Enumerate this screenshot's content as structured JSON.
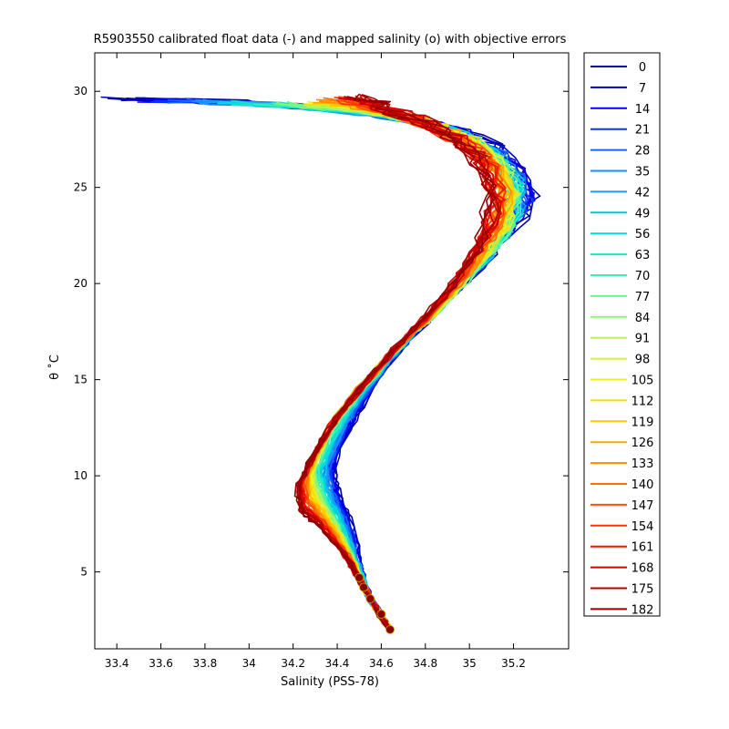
{
  "chart_data": {
    "type": "line",
    "title": "R5903550 calibrated float data (-) and mapped salinity (o) with objective errors",
    "xlabel": "Salinity (PSS-78)",
    "ylabel": "θ ˚C",
    "xlim": [
      33.3,
      35.45
    ],
    "ylim": [
      1.0,
      32.0
    ],
    "xticks": [
      "33.4",
      "33.6",
      "33.8",
      "34",
      "34.2",
      "34.4",
      "34.6",
      "34.8",
      "35",
      "35.2"
    ],
    "xtick_values": [
      33.4,
      33.6,
      33.8,
      34.0,
      34.2,
      34.4,
      34.6,
      34.8,
      35.0,
      35.2
    ],
    "yticks": [
      "5",
      "10",
      "15",
      "20",
      "25",
      "30"
    ],
    "ytick_values": [
      5,
      10,
      15,
      20,
      25,
      30
    ],
    "grid": false,
    "legend_position": "outside-right",
    "legend": [
      "0",
      "7",
      "14",
      "21",
      "28",
      "35",
      "42",
      "49",
      "56",
      "63",
      "70",
      "77",
      "84",
      "91",
      "98",
      "105",
      "112",
      "119",
      "126",
      "133",
      "140",
      "147",
      "154",
      "161",
      "168",
      "175",
      "182"
    ],
    "colors": [
      "#0000aa",
      "#0000c8",
      "#0000ff",
      "#0a32ff",
      "#1464ff",
      "#1e8cff",
      "#14a0f0",
      "#00c8e6",
      "#00dcdc",
      "#14e6c8",
      "#3cf0b4",
      "#64f596",
      "#8cf578",
      "#b4f55a",
      "#d2f03c",
      "#f0f01e",
      "#ffdc00",
      "#ffc800",
      "#ffaa00",
      "#ff8c00",
      "#ff6e00",
      "#ff5000",
      "#ff3200",
      "#f01400",
      "#d20000",
      "#b40000",
      "#960000"
    ],
    "series_representative": {
      "early": {
        "x": [
          34.64,
          34.6,
          34.55,
          34.52,
          34.5,
          34.48,
          34.45,
          34.42,
          34.4,
          34.38,
          34.42,
          34.48,
          34.55,
          34.62,
          34.7,
          34.8,
          34.9,
          35.0,
          35.12,
          35.22,
          35.28,
          35.22,
          35.1,
          34.9,
          34.6,
          34.2,
          33.8,
          33.4
        ],
        "y": [
          2.0,
          2.8,
          3.6,
          4.6,
          5.6,
          6.8,
          7.8,
          8.6,
          9.4,
          10.2,
          11.6,
          13.0,
          14.4,
          15.6,
          16.8,
          18.0,
          19.2,
          20.4,
          21.8,
          23.2,
          24.4,
          26.0,
          27.2,
          28.2,
          28.9,
          29.3,
          29.5,
          29.6
        ]
      },
      "middle": {
        "x": [
          34.64,
          34.58,
          34.52,
          34.48,
          34.42,
          34.36,
          34.3,
          34.28,
          34.34,
          34.42,
          34.52,
          34.62,
          34.72,
          34.84,
          34.95,
          35.05,
          35.15,
          35.2,
          35.15,
          35.02,
          34.8,
          34.55,
          34.25
        ],
        "y": [
          2.0,
          3.0,
          4.2,
          5.4,
          6.8,
          8.0,
          9.2,
          10.2,
          11.8,
          13.4,
          14.8,
          16.0,
          17.2,
          18.4,
          19.8,
          21.2,
          22.8,
          24.4,
          26.0,
          27.4,
          28.4,
          29.0,
          29.3
        ]
      },
      "late": {
        "x": [
          34.64,
          34.58,
          34.52,
          34.46,
          34.38,
          34.3,
          34.23,
          34.22,
          34.28,
          34.36,
          34.45,
          34.55,
          34.66,
          34.78,
          34.9,
          35.0,
          35.08,
          35.1,
          35.05,
          34.92,
          34.75,
          34.6,
          34.5
        ],
        "y": [
          2.0,
          3.0,
          4.2,
          5.4,
          6.6,
          7.6,
          8.2,
          9.4,
          10.8,
          12.4,
          13.8,
          15.2,
          16.6,
          18.0,
          19.6,
          21.2,
          23.0,
          24.8,
          26.4,
          27.6,
          28.6,
          29.2,
          29.8
        ]
      }
    },
    "mapped_points": {
      "x": [
        34.64,
        34.6,
        34.55,
        34.52,
        34.5
      ],
      "y": [
        2.0,
        2.8,
        3.6,
        4.2,
        4.7
      ]
    }
  }
}
